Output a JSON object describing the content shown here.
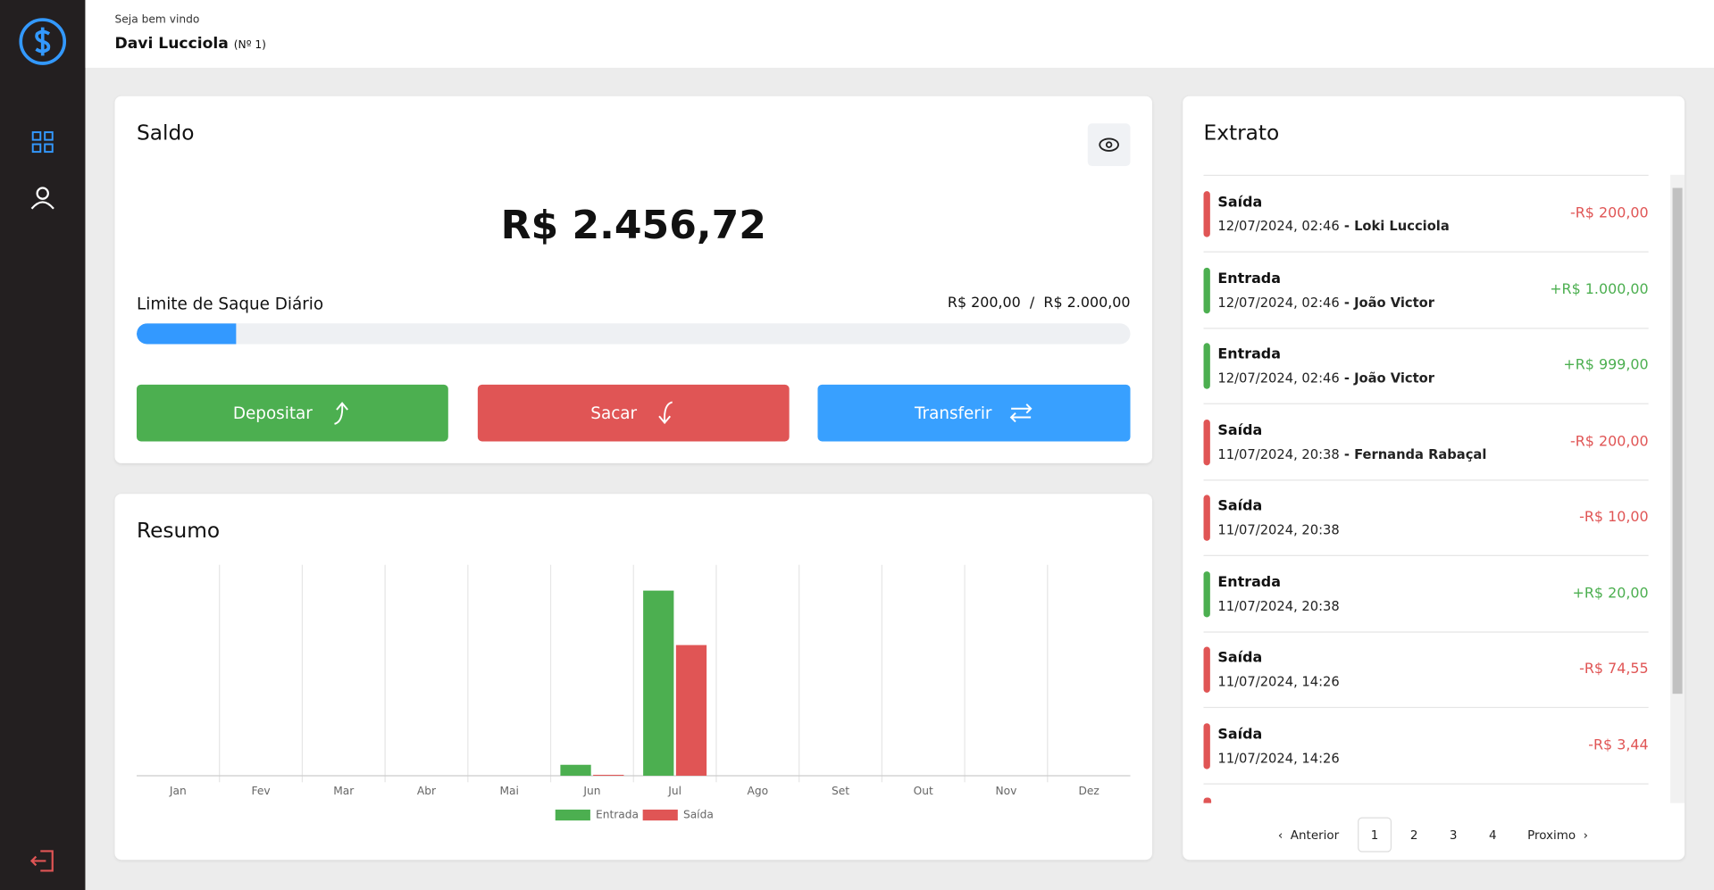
{
  "header": {
    "greeting": "Seja bem vindo",
    "name": "Davi Lucciola",
    "number": "(Nº 1)"
  },
  "saldo": {
    "title": "Saldo",
    "balance": "R$ 2.456,72",
    "limit_title": "Limite de Saque Diário",
    "limit": {
      "used": 200,
      "max": 2000,
      "used_label": "R$ 200,00",
      "separator": "/",
      "max_label": "R$ 2.000,00"
    },
    "buttons": [
      "Depositar",
      "Sacar",
      "Transferir"
    ]
  },
  "resumo": {
    "title": "Resumo",
    "chart_data": {
      "type": "bar",
      "categories": [
        "Jan",
        "Fev",
        "Mar",
        "Abr",
        "Mai",
        "Jun",
        "Jul",
        "Ago",
        "Set",
        "Out",
        "Nov",
        "Dez"
      ],
      "series": [
        {
          "name": "Entrada",
          "color": "#4caf50",
          "values": [
            0,
            0,
            0,
            0,
            0,
            119,
            2019,
            0,
            0,
            0,
            0,
            0
          ]
        },
        {
          "name": "Saída",
          "color": "#e05555",
          "values": [
            0,
            0,
            0,
            0,
            0,
            10,
            1425,
            0,
            0,
            0,
            0,
            0
          ]
        }
      ],
      "ylim": [
        0,
        2300
      ],
      "legend": "bottom"
    }
  },
  "extrato": {
    "title": "Extrato",
    "items": [
      {
        "type": "Saída",
        "date": "12/07/2024, 02:46",
        "name": "Loki Lucciola",
        "amount": "-R$ 200,00"
      },
      {
        "type": "Entrada",
        "date": "12/07/2024, 02:46",
        "name": "João Victor",
        "amount": "+R$ 1.000,00"
      },
      {
        "type": "Entrada",
        "date": "12/07/2024, 02:46",
        "name": "João Victor",
        "amount": "+R$ 999,00"
      },
      {
        "type": "Saída",
        "date": "11/07/2024, 20:38",
        "name": "Fernanda Rabaçal",
        "amount": "-R$ 200,00"
      },
      {
        "type": "Saída",
        "date": "11/07/2024, 20:38",
        "amount": "-R$ 10,00"
      },
      {
        "type": "Entrada",
        "date": "11/07/2024, 20:38",
        "amount": "+R$ 20,00"
      },
      {
        "type": "Saída",
        "date": "11/07/2024, 14:26",
        "amount": "-R$ 74,55"
      },
      {
        "type": "Saída",
        "date": "11/07/2024, 14:26",
        "amount": "-R$ 3,44"
      }
    ],
    "pagination": {
      "previous": "Anterior",
      "pages": [
        "1",
        "2",
        "3",
        "4"
      ],
      "next": "Proximo"
    }
  }
}
